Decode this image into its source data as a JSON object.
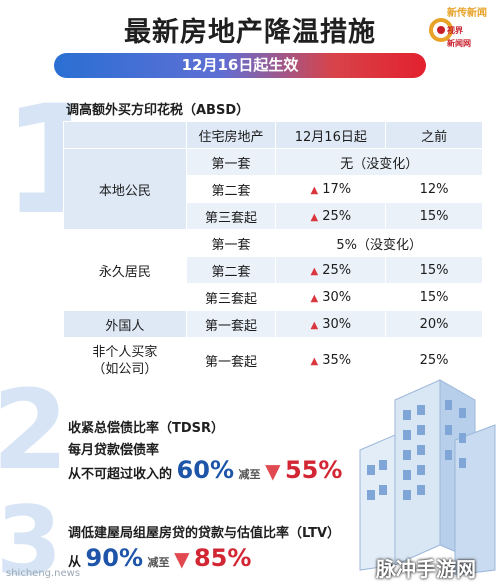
{
  "header": {
    "title": "最新房地产降温措施",
    "date_banner": "12月16日起生效",
    "logo_top": "新传新闻",
    "logo_mid": "视界",
    "logo_bot": "新闻网"
  },
  "section1": {
    "number": "1",
    "title": "调高额外买方印花税（ABSD）",
    "table": {
      "headers": [
        "",
        "住宅房地产",
        "12月16日起",
        "之前"
      ],
      "groups": [
        {
          "name": "本地公民",
          "rows": [
            {
              "property": "第一套",
              "merged": "无（没变化）"
            },
            {
              "property": "第二套",
              "new": "17%",
              "old": "12%"
            },
            {
              "property": "第三套起",
              "new": "25%",
              "old": "15%"
            }
          ]
        },
        {
          "name": "永久居民",
          "rows": [
            {
              "property": "第一套",
              "merged": "5%（没变化）"
            },
            {
              "property": "第二套",
              "new": "25%",
              "old": "15%"
            },
            {
              "property": "第三套起",
              "new": "30%",
              "old": "15%"
            }
          ]
        },
        {
          "name": "外国人",
          "rows": [
            {
              "property": "第一套起",
              "new": "30%",
              "old": "20%"
            }
          ]
        },
        {
          "name": "非个人买家（如公司）",
          "name_line1": "非个人买家",
          "name_line2": "（如公司）",
          "rows": [
            {
              "property": "第一套起",
              "new": "35%",
              "old": "25%"
            }
          ]
        }
      ]
    }
  },
  "section2": {
    "number": "2",
    "title": "收紧总偿债比率（TDSR）",
    "subtitle": "每月贷款偿债率",
    "line_prefix": "从不可超过收入的",
    "from_value": "60%",
    "reduce_label": "减至",
    "to_value": "55%"
  },
  "section3": {
    "number": "3",
    "title": "调低建屋局组屋房贷的贷款与估值比率（LTV）",
    "line_prefix": "从",
    "from_value": "90%",
    "reduce_label": "减至",
    "to_value": "85%"
  },
  "watermarks": {
    "left": "shicheng.news",
    "right": "脉冲手游网"
  },
  "colors": {
    "accent_blue": "#1e55a8",
    "accent_red": "#d32634",
    "table_blue": "#dfe9f5"
  }
}
